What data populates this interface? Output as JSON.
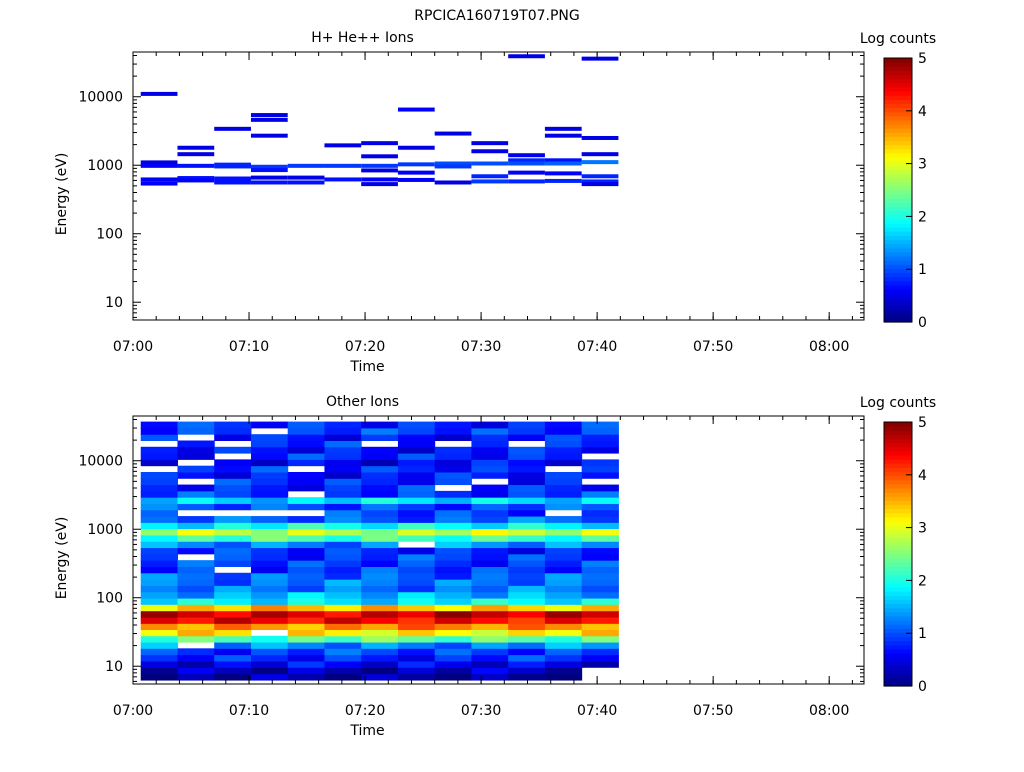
{
  "figure": {
    "title": "RPCICA160719T07.PNG"
  },
  "colormap_stops": [
    "#00007f",
    "#0000ff",
    "#007fff",
    "#00ffff",
    "#7fff7f",
    "#ffff00",
    "#ff7f00",
    "#ff0000",
    "#7f0000"
  ],
  "chart_data": [
    {
      "type": "heatmap",
      "title": "H+ He++ Ions",
      "xlabel": "Time",
      "ylabel": "Energy (eV)",
      "y_scale": "log",
      "xlim": [
        "07:00",
        "08:03"
      ],
      "ylim": [
        5.5,
        45000
      ],
      "x_ticks": [
        "07:00",
        "07:10",
        "07:20",
        "07:30",
        "07:40",
        "07:50",
        "08:00"
      ],
      "y_ticks": [
        "10",
        "100",
        "1000",
        "10000"
      ],
      "colorbar": {
        "label": "Log counts",
        "range": [
          0,
          5
        ],
        "ticks": [
          "0",
          "1",
          "2",
          "3",
          "4",
          "5"
        ]
      },
      "time_bins": [
        "07:00:40",
        "07:03:50",
        "07:07:00",
        "07:10:10",
        "07:13:20",
        "07:16:30",
        "07:19:40",
        "07:22:50",
        "07:26:00",
        "07:29:10",
        "07:32:20",
        "07:35:30",
        "07:38:40",
        "07:41:50"
      ],
      "cells": [
        [
          0,
          11000,
          0.5
        ],
        [
          0,
          1100,
          0.5
        ],
        [
          0,
          980,
          0.6
        ],
        [
          0,
          620,
          0.6
        ],
        [
          0,
          540,
          0.6
        ],
        [
          1,
          1800,
          0.5
        ],
        [
          1,
          1450,
          0.5
        ],
        [
          1,
          980,
          0.7
        ],
        [
          1,
          650,
          0.7
        ],
        [
          1,
          600,
          0.6
        ],
        [
          2,
          3400,
          0.5
        ],
        [
          2,
          1020,
          0.8
        ],
        [
          2,
          960,
          0.8
        ],
        [
          2,
          640,
          0.7
        ],
        [
          2,
          560,
          0.7
        ],
        [
          3,
          5400,
          0.5
        ],
        [
          3,
          4600,
          0.5
        ],
        [
          3,
          2700,
          0.5
        ],
        [
          3,
          950,
          0.9
        ],
        [
          3,
          850,
          0.7
        ],
        [
          3,
          660,
          0.5
        ],
        [
          3,
          560,
          0.7
        ],
        [
          4,
          980,
          0.9
        ],
        [
          4,
          660,
          0.5
        ],
        [
          4,
          560,
          0.7
        ],
        [
          5,
          1950,
          0.5
        ],
        [
          5,
          980,
          0.9
        ],
        [
          5,
          620,
          0.7
        ],
        [
          6,
          2100,
          0.5
        ],
        [
          6,
          1350,
          0.5
        ],
        [
          6,
          980,
          0.9
        ],
        [
          6,
          840,
          0.5
        ],
        [
          6,
          620,
          0.6
        ],
        [
          6,
          530,
          0.5
        ],
        [
          7,
          6500,
          0.6
        ],
        [
          7,
          1800,
          0.5
        ],
        [
          7,
          1030,
          0.9
        ],
        [
          7,
          780,
          0.6
        ],
        [
          7,
          610,
          0.6
        ],
        [
          8,
          2900,
          0.5
        ],
        [
          8,
          1060,
          1.0
        ],
        [
          8,
          960,
          0.9
        ],
        [
          8,
          560,
          0.5
        ],
        [
          9,
          2100,
          0.5
        ],
        [
          9,
          1600,
          0.5
        ],
        [
          9,
          1060,
          1.0
        ],
        [
          9,
          690,
          0.8
        ],
        [
          9,
          580,
          0.9
        ],
        [
          10,
          39000,
          0.5
        ],
        [
          10,
          1400,
          0.5
        ],
        [
          10,
          1180,
          0.8
        ],
        [
          10,
          1060,
          1.0
        ],
        [
          10,
          780,
          0.6
        ],
        [
          10,
          580,
          0.8
        ],
        [
          11,
          3400,
          0.5
        ],
        [
          11,
          2700,
          0.5
        ],
        [
          11,
          1180,
          0.7
        ],
        [
          11,
          1060,
          1.1
        ],
        [
          11,
          760,
          0.6
        ],
        [
          11,
          590,
          0.8
        ],
        [
          12,
          36000,
          0.5
        ],
        [
          12,
          2500,
          0.5
        ],
        [
          12,
          1450,
          0.5
        ],
        [
          12,
          1110,
          1.2
        ],
        [
          12,
          690,
          0.8
        ],
        [
          12,
          580,
          0.8
        ],
        [
          12,
          530,
          0.5
        ]
      ]
    },
    {
      "type": "heatmap",
      "title": "Other Ions",
      "xlabel": "Time",
      "ylabel": "Energy (eV)",
      "y_scale": "log",
      "xlim": [
        "07:00",
        "08:03"
      ],
      "ylim": [
        5.5,
        45000
      ],
      "x_ticks": [
        "07:00",
        "07:10",
        "07:20",
        "07:30",
        "07:40",
        "07:50",
        "08:00"
      ],
      "y_ticks": [
        "10",
        "100",
        "1000",
        "10000"
      ],
      "colorbar": {
        "label": "Log counts",
        "range": [
          0,
          5
        ],
        "ticks": [
          "0",
          "1",
          "2",
          "3",
          "4",
          "5"
        ]
      },
      "energy_channels": [
        7,
        8.7,
        10.7,
        13.3,
        16.4,
        20.3,
        25,
        31,
        38,
        47,
        58,
        72,
        89,
        110,
        136,
        168,
        208,
        257,
        318,
        393,
        486,
        600,
        742,
        917,
        1133,
        1400,
        1731,
        2139,
        2643,
        3267,
        4037,
        4989,
        6165,
        7619,
        9416,
        11636,
        14380,
        17771,
        21961,
        27139,
        33538
      ],
      "time_bins": [
        "07:00:40",
        "07:03:50",
        "07:07:00",
        "07:10:10",
        "07:13:20",
        "07:16:30",
        "07:19:40",
        "07:22:50",
        "07:26:00",
        "07:29:10",
        "07:32:20",
        "07:35:30",
        "07:38:40",
        "07:41:50"
      ],
      "column_ranges": [
        [
          0,
          40
        ],
        [
          0,
          40
        ],
        [
          0,
          40
        ],
        [
          0,
          40
        ],
        [
          0,
          40
        ],
        [
          0,
          40
        ],
        [
          0,
          40
        ],
        [
          0,
          40
        ],
        [
          0,
          40
        ],
        [
          0,
          40
        ],
        [
          0,
          40
        ],
        [
          0,
          40
        ],
        [
          2,
          40
        ]
      ],
      "channel_profile": [
        0.15,
        0.3,
        0.55,
        0.8,
        0.9,
        1.3,
        2.3,
        3.2,
        3.7,
        4.4,
        4.6,
        3.4,
        1.8,
        1.5,
        1.2,
        1.2,
        1.1,
        0.9,
        0.9,
        0.9,
        0.8,
        1.3,
        2.2,
        2.8,
        1.9,
        1.1,
        0.9,
        1.0,
        1.7,
        0.9,
        0.8,
        0.8,
        0.7,
        0.8,
        0.6,
        0.8,
        0.7,
        0.8,
        0.7,
        0.9,
        0.8
      ],
      "empty_cells": [
        [
          0,
          33
        ],
        [
          0,
          37
        ],
        [
          1,
          5
        ],
        [
          1,
          19
        ],
        [
          1,
          26
        ],
        [
          1,
          31
        ],
        [
          1,
          34
        ],
        [
          1,
          38
        ],
        [
          2,
          17
        ],
        [
          2,
          26
        ],
        [
          2,
          35
        ],
        [
          2,
          37
        ],
        [
          3,
          7
        ],
        [
          3,
          26
        ],
        [
          3,
          39
        ],
        [
          4,
          26
        ],
        [
          4,
          29
        ],
        [
          4,
          33
        ],
        [
          6,
          37
        ],
        [
          7,
          21
        ],
        [
          8,
          30
        ],
        [
          8,
          37
        ],
        [
          9,
          31
        ],
        [
          10,
          37
        ],
        [
          11,
          26
        ],
        [
          11,
          33
        ],
        [
          12,
          31
        ],
        [
          12,
          35
        ]
      ]
    }
  ]
}
